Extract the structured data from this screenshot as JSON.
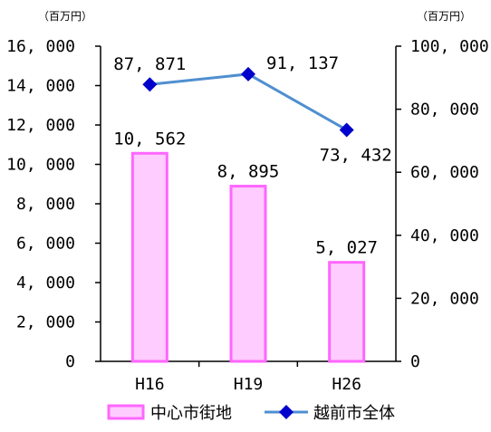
{
  "chart_data": {
    "type": "bar",
    "categories": [
      "H16",
      "H19",
      "H26"
    ],
    "series": [
      {
        "name": "中心市街地",
        "kind": "bar",
        "axis": "left",
        "values": [
          10562,
          8895,
          5027
        ],
        "labels": [
          "10, 562",
          "8, 895",
          "5, 027"
        ],
        "color": "#ff66ff",
        "fill": "#ffccff"
      },
      {
        "name": "越前市全体",
        "kind": "line",
        "axis": "right",
        "values": [
          87871,
          91137,
          73432
        ],
        "labels": [
          "87, 871",
          "91, 137",
          "73, 432"
        ],
        "color": "#4f8fd0",
        "marker_color": "#0000cc"
      }
    ],
    "left_axis": {
      "unit": "（百万円）",
      "ylim": [
        0,
        16000
      ],
      "ticks": [
        0,
        2000,
        4000,
        6000,
        8000,
        10000,
        12000,
        14000,
        16000
      ],
      "tick_labels": [
        "0",
        "2, 000",
        "4, 000",
        "6, 000",
        "8, 000",
        "10, 000",
        "12, 000",
        "14, 000",
        "16, 000"
      ]
    },
    "right_axis": {
      "unit": "（百万円）",
      "ylim": [
        0,
        100000
      ],
      "ticks": [
        0,
        20000,
        40000,
        60000,
        80000,
        100000
      ],
      "tick_labels": [
        "0",
        "20, 000",
        "40, 000",
        "60, 000",
        "80, 000",
        "100, 000"
      ]
    },
    "legend": {
      "position": "bottom",
      "items": [
        "中心市街地",
        "越前市全体"
      ]
    },
    "grid": false
  }
}
